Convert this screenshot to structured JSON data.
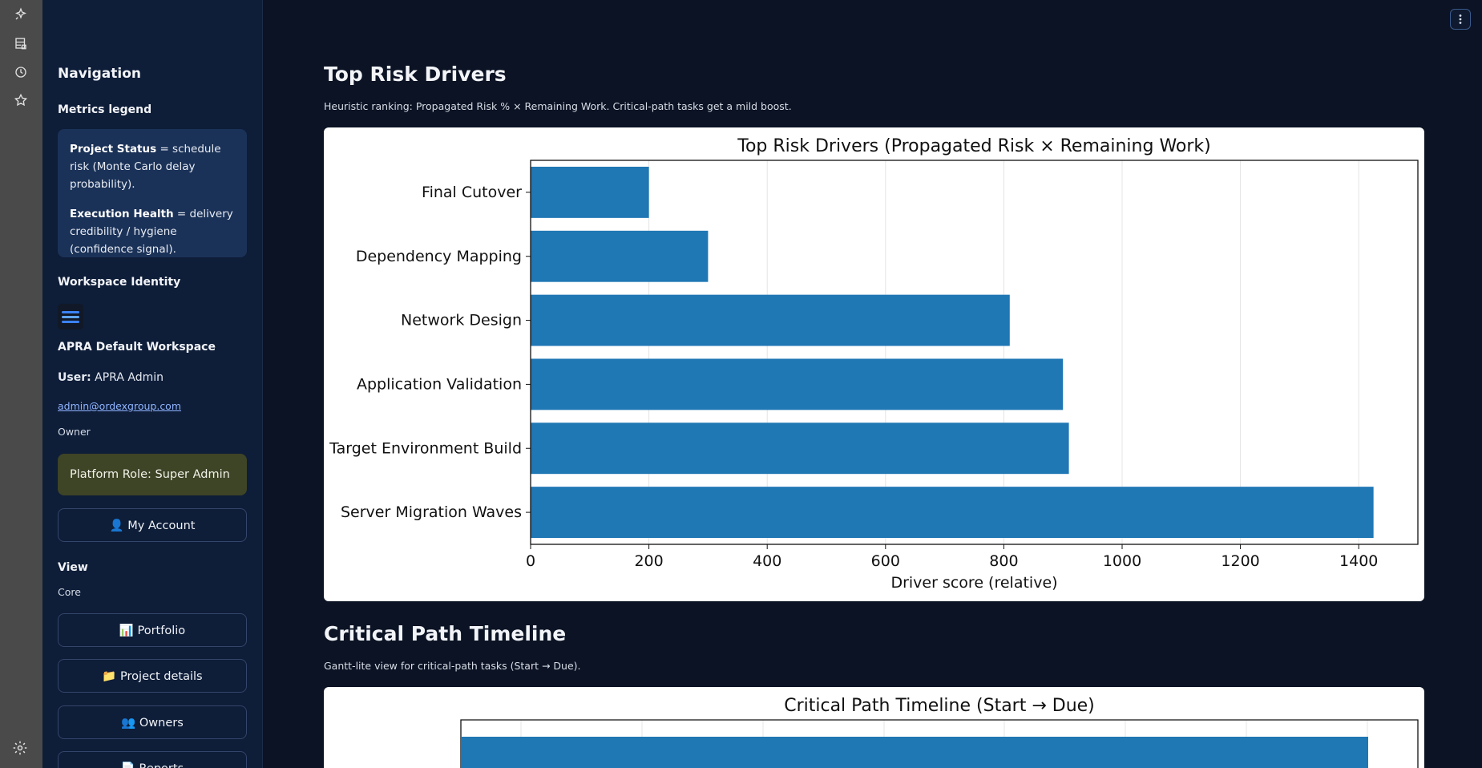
{
  "rail": {
    "icons": [
      "sparkle-icon",
      "dataset-icon",
      "history-icon",
      "star-icon"
    ],
    "settings_icon": "gear-icon"
  },
  "sidebar": {
    "title": "Navigation",
    "legend_heading": "Metrics legend",
    "legend": {
      "status_term": "Project Status",
      "status_def": " = schedule risk (Monte Carlo delay probability).",
      "health_term": "Execution Health",
      "health_def": " = delivery credibility / hygiene (confidence signal)."
    },
    "identity_heading": "Workspace Identity",
    "workspace_name": "APRA Default Workspace",
    "user_label": "User:",
    "user_name": " APRA Admin",
    "email": "admin@ordexgroup.com",
    "role": "Owner",
    "platform_role": "Platform Role: Super Admin",
    "my_account": "👤 My Account",
    "view_heading": "View",
    "view_group": "Core",
    "nav_buttons": [
      "📊 Portfolio",
      "📁 Project details",
      "👥 Owners",
      "📄 Reports"
    ]
  },
  "main": {
    "risk_title": "Top Risk Drivers",
    "risk_caption": "Heuristic ranking: Propagated Risk % × Remaining Work. Critical-path tasks get a mild boost.",
    "timeline_title": "Critical Path Timeline",
    "timeline_caption": "Gantt-lite view for critical-path tasks (Start → Due)."
  },
  "chart_data": [
    {
      "type": "bar",
      "orientation": "horizontal",
      "title": "Top Risk Drivers (Propagated Risk × Remaining Work)",
      "xlabel": "Driver score (relative)",
      "ylabel": "",
      "categories": [
        "Final Cutover",
        "Dependency Mapping",
        "Network Design",
        "Application Validation",
        "Target Environment Build",
        "Server Migration Waves"
      ],
      "values": [
        200,
        300,
        810,
        900,
        910,
        1425
      ],
      "xlim": [
        0,
        1500
      ],
      "xticks": [
        0,
        200,
        400,
        600,
        800,
        1000,
        1200,
        1400
      ],
      "grid": "vertical",
      "color": "#1f77b4"
    },
    {
      "type": "bar",
      "orientation": "horizontal",
      "title": "Critical Path Timeline (Start → Due)",
      "color": "#1f77b4"
    }
  ]
}
